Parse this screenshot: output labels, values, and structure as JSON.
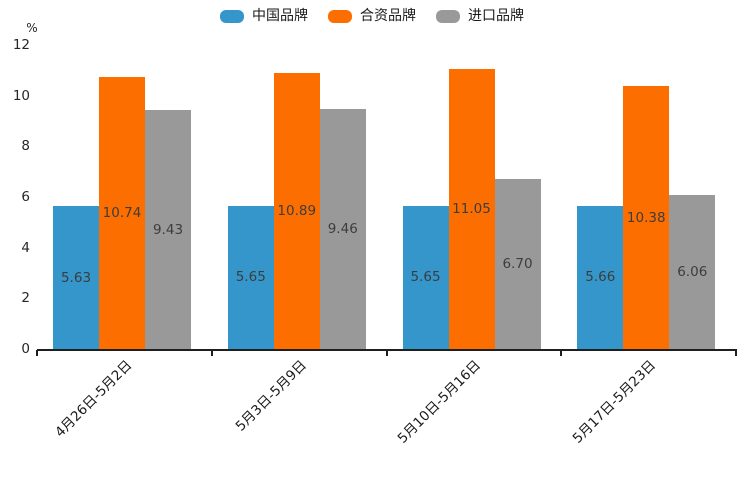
{
  "chart_data": {
    "type": "bar",
    "title": "",
    "xlabel": "",
    "ylabel": "%",
    "ylim": [
      0,
      12
    ],
    "ytick_step": 2,
    "grid": false,
    "legend_position": "top",
    "value_labels": "inside-center",
    "categories": [
      "4月26日-5月2日",
      "5月3日-5月9日",
      "5月10日-5月16日",
      "5月17日-5月23日"
    ],
    "series": [
      {
        "name": "中国品牌",
        "color": "#3496ca",
        "values": [
          5.63,
          5.65,
          5.65,
          5.66
        ]
      },
      {
        "name": "合资品牌",
        "color": "#fd6e00",
        "values": [
          10.74,
          10.89,
          11.05,
          10.38
        ]
      },
      {
        "name": "进口品牌",
        "color": "#999999",
        "values": [
          9.43,
          9.46,
          6.7,
          6.06
        ]
      }
    ],
    "colors": {
      "axis": "#1f1f1f",
      "tick_text": "#262626",
      "value_label_text": "#3d3d3d",
      "legend_text": "#1a1a1a"
    }
  }
}
